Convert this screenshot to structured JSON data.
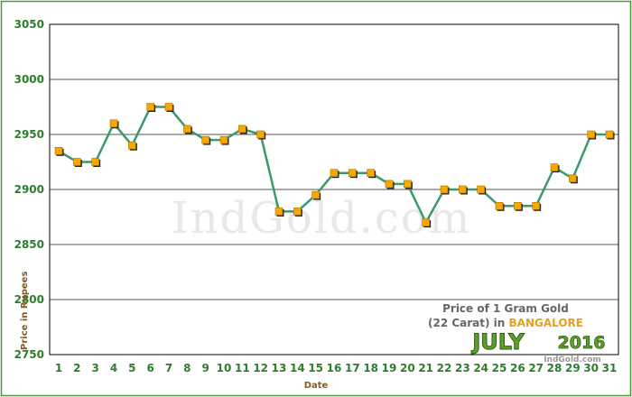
{
  "colors": {
    "frame": "#4a9a3a",
    "line": "#3a9a6a",
    "marker": "#f5a800",
    "marker_shadow": "#222222",
    "tick_text": "#2e7d2e",
    "axis_label": "#8a5a1a",
    "grid_major": "#555555",
    "grid_minor": "#bbbbbb",
    "watermark": "#e8e8e8",
    "accent_orange": "#e6a020",
    "month_green": "#5aa02a"
  },
  "chart_data": {
    "type": "line",
    "xlabel": "Date",
    "ylabel": "Price in Rupees",
    "ylim": [
      2750,
      3050
    ],
    "yticks": [
      2750,
      2800,
      2850,
      2900,
      2950,
      3000,
      3050
    ],
    "x": [
      1,
      2,
      3,
      4,
      5,
      6,
      7,
      8,
      9,
      10,
      11,
      12,
      13,
      14,
      15,
      16,
      17,
      18,
      19,
      20,
      21,
      22,
      23,
      24,
      25,
      26,
      27,
      28,
      29,
      30,
      31
    ],
    "x_tick_labels": [
      "1",
      "2",
      "3",
      "4",
      "5",
      "6",
      "7",
      "8",
      "9",
      "10",
      "11",
      "12",
      "13",
      "14",
      "15",
      "16",
      "17",
      "18",
      "19",
      "20",
      "21",
      "22",
      "23",
      "24",
      "25",
      "26",
      "27",
      "28",
      "29",
      "30",
      "31"
    ],
    "series": [
      {
        "values": [
          2935,
          2925,
          2925,
          2960,
          2940,
          2975,
          2975,
          2955,
          2945,
          2945,
          2955,
          2950,
          2880,
          2880,
          2895,
          2915,
          2915,
          2915,
          2905,
          2905,
          2870,
          2900,
          2900,
          2900,
          2885,
          2885,
          2885,
          2920,
          2910,
          2950,
          2950
        ]
      }
    ],
    "grid": true,
    "watermark": "IndGold.com",
    "annotation": {
      "line1": "Price of 1 Gram Gold",
      "line2_prefix": "(22 Carat) in ",
      "city": "BANGALORE",
      "month": "JULY",
      "year": "2016",
      "site": "IndGold.com"
    }
  }
}
